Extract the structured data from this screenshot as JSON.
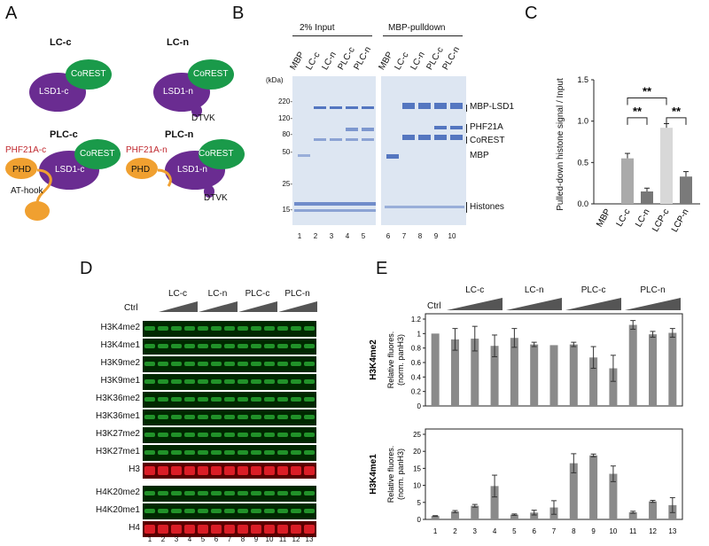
{
  "panels": {
    "a": "A",
    "b": "B",
    "c": "C",
    "d": "D",
    "e": "E"
  },
  "panel_a": {
    "diagrams": [
      {
        "title": "LC-c",
        "lsd1": "LSD1-c",
        "corest": "CoREST"
      },
      {
        "title": "LC-n",
        "lsd1": "LSD1-n",
        "corest": "CoREST",
        "tail": "DTVK"
      },
      {
        "title": "PLC-c",
        "lsd1": "LSD1-c",
        "corest": "CoREST",
        "phf": "PHF21A-c",
        "phd": "PHD",
        "athook": "AT-hook"
      },
      {
        "title": "PLC-n",
        "lsd1": "LSD1-n",
        "corest": "CoREST",
        "phf": "PHF21A-n",
        "phd": "PHD",
        "tail": "DTVK"
      }
    ],
    "colors": {
      "lsd1": "#6a2c91",
      "corest": "#1a9a4a",
      "phd": "#f0a030",
      "phf_text": "#c0282e"
    }
  },
  "panel_b": {
    "input_label": "2% Input",
    "pulldown_label": "MBP-pulldown",
    "lane_headers": [
      "MBP",
      "LC-c",
      "LC-n",
      "PLC-c",
      "PLC-n",
      "MBP",
      "LC-c",
      "LC-n",
      "PLC-c",
      "PLC-n"
    ],
    "kda_unit": "(kDa)",
    "markers": [
      "220-",
      "120-",
      "80-",
      "50-",
      "25-",
      "15-"
    ],
    "lane_numbers": [
      "1",
      "2",
      "3",
      "4",
      "5",
      "6",
      "7",
      "8",
      "9",
      "10"
    ],
    "band_labels": [
      "MBP-LSD1",
      "PHF21A",
      "CoREST",
      "MBP",
      "Histones"
    ]
  },
  "panel_c": {
    "ylabel": "Pulled-down histone signal / Input",
    "sig": [
      "**",
      "**",
      "**"
    ],
    "chart_data": {
      "type": "bar",
      "categories": [
        "MBP",
        "LC-c",
        "LC-n",
        "LCP-c",
        "LCP-n"
      ],
      "values": [
        0.0,
        0.55,
        0.15,
        0.92,
        0.33
      ],
      "errors": [
        0.0,
        0.06,
        0.04,
        0.05,
        0.06
      ],
      "colors": [
        "#999999",
        "#aaaaaa",
        "#777777",
        "#d8d8d8",
        "#7a7a7a"
      ],
      "ylim": [
        0,
        1.5
      ],
      "yticks": [
        "0.0",
        "0.5",
        "1.0",
        "1.5"
      ],
      "xlabel": "",
      "title": ""
    }
  },
  "panel_d": {
    "groups": [
      "LC-c",
      "LC-n",
      "PLC-c",
      "PLC-n"
    ],
    "ctrl": "Ctrl",
    "blots": [
      "H3K4me2",
      "H3K4me1",
      "H3K9me2",
      "H3K9me1",
      "H3K36me2",
      "H3K36me1",
      "H3K27me2",
      "H3K27me1",
      "H3",
      "H4K20me2",
      "H4K20me1",
      "H4"
    ],
    "lane_numbers": [
      "1",
      "2",
      "3",
      "4",
      "5",
      "6",
      "7",
      "8",
      "9",
      "10",
      "11",
      "12",
      "13"
    ]
  },
  "panel_e": {
    "groups": [
      "LC-c",
      "LC-n",
      "PLC-c",
      "PLC-n"
    ],
    "ctrl": "Ctrl",
    "ylabel_line1": "Relative fluores.",
    "ylabel_line2": "(norm. panH3)",
    "lane_numbers": [
      "1",
      "2",
      "3",
      "4",
      "5",
      "6",
      "7",
      "8",
      "9",
      "10",
      "11",
      "12",
      "13"
    ],
    "chart_data": [
      {
        "type": "bar",
        "title": "H3K4me2",
        "categories": [
          "1",
          "2",
          "3",
          "4",
          "5",
          "6",
          "7",
          "8",
          "9",
          "10",
          "11",
          "12",
          "13"
        ],
        "values": [
          1.0,
          0.92,
          0.93,
          0.83,
          0.94,
          0.85,
          0.84,
          0.85,
          0.67,
          0.52,
          1.12,
          0.99,
          1.01
        ],
        "errors": [
          0.0,
          0.15,
          0.17,
          0.15,
          0.13,
          0.03,
          0.0,
          0.03,
          0.15,
          0.18,
          0.06,
          0.04,
          0.06
        ],
        "ylim": [
          0,
          1.2
        ],
        "yticks": [
          "0",
          "0.2",
          "0.4",
          "0.6",
          "0.8",
          "1",
          "1.2"
        ]
      },
      {
        "type": "bar",
        "title": "H3K4me1",
        "categories": [
          "1",
          "2",
          "3",
          "4",
          "5",
          "6",
          "7",
          "8",
          "9",
          "10",
          "11",
          "12",
          "13"
        ],
        "values": [
          1.0,
          2.3,
          4.0,
          9.8,
          1.4,
          2.0,
          3.5,
          16.5,
          18.8,
          13.4,
          2.1,
          5.3,
          4.2
        ],
        "errors": [
          0.1,
          0.3,
          0.4,
          3.2,
          0.2,
          0.7,
          2.0,
          2.8,
          0.4,
          2.3,
          0.3,
          0.3,
          2.2
        ],
        "ylim": [
          0,
          25
        ],
        "yticks": [
          "0",
          "5",
          "10",
          "15",
          "20",
          "25"
        ]
      }
    ]
  }
}
